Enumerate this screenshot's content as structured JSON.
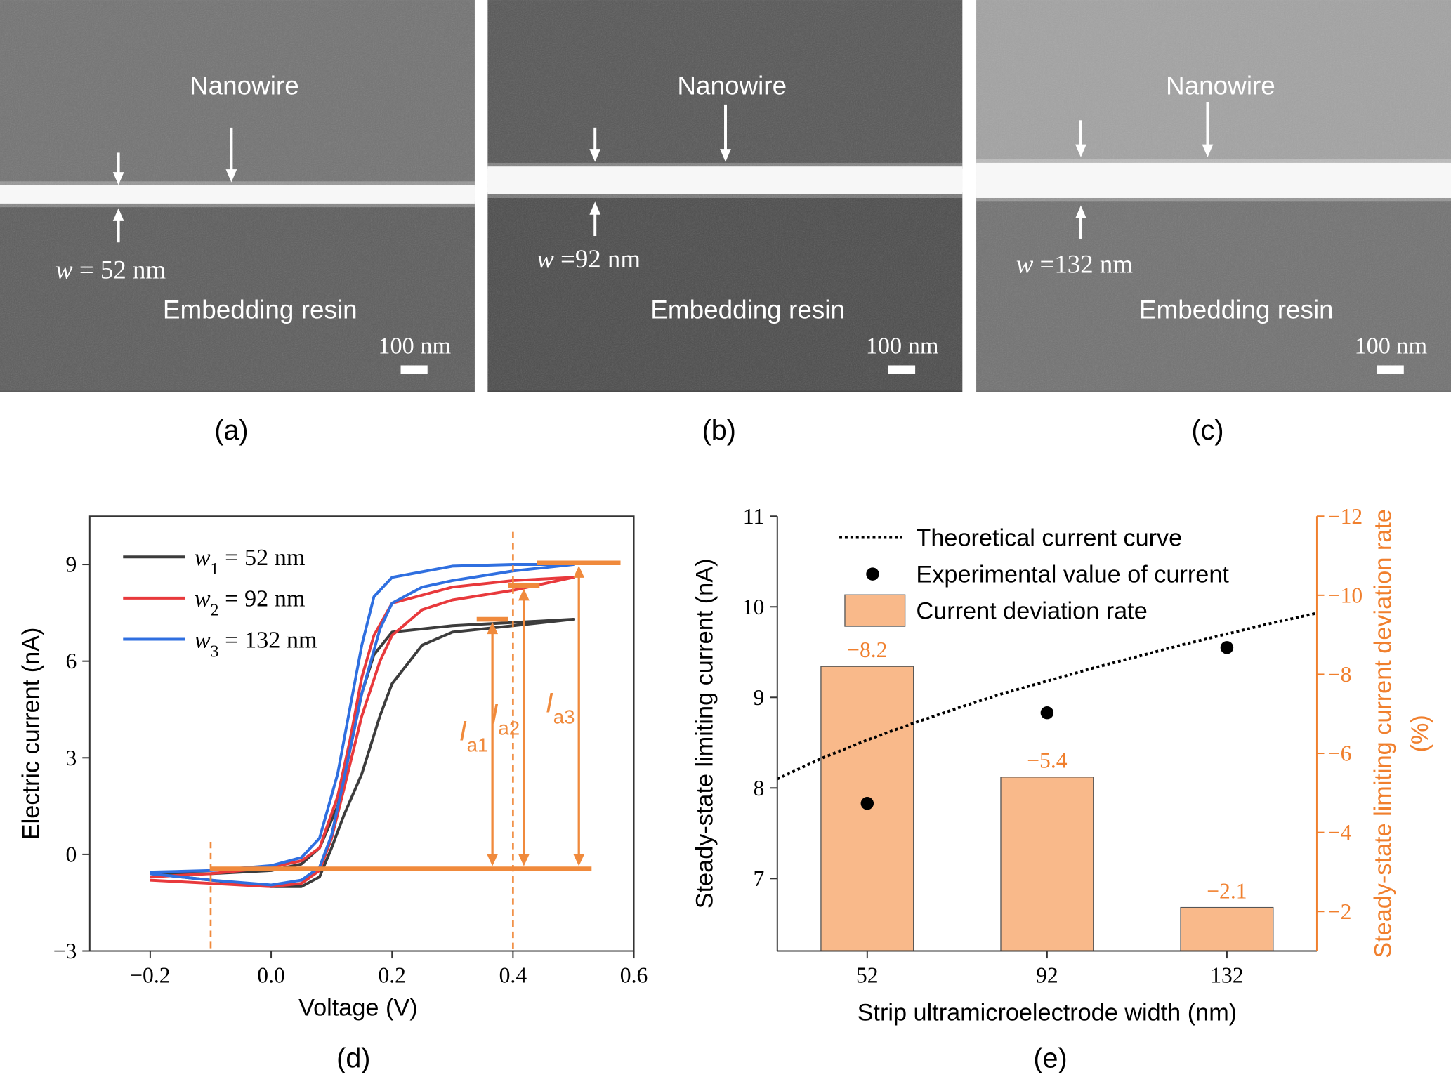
{
  "images": [
    {
      "panel_label": "(a)",
      "top_label": "Nanowire",
      "width_label": "w = 52 nm",
      "bottom_label": "Embedding resin",
      "scale_bar": "100 nm"
    },
    {
      "panel_label": "(b)",
      "top_label": "Nanowire",
      "width_label": "w =92 nm",
      "bottom_label": "Embedding resin",
      "scale_bar": "100 nm"
    },
    {
      "panel_label": "(c)",
      "top_label": "Nanowire",
      "width_label": "w =132 nm",
      "bottom_label": "Embedding resin",
      "scale_bar": "100 nm"
    }
  ],
  "chart_data": [
    {
      "type": "line",
      "panel_label": "(d)",
      "xlabel": "Voltage (V)",
      "ylabel": "Electric current (nA)",
      "xlim": [
        -0.3,
        0.6
      ],
      "xticks": [
        {
          "value": -0.2,
          "label": "−0.2"
        },
        {
          "value": 0,
          "label": "0.0"
        },
        0.2,
        0.4,
        0.6
      ],
      "ylim": [
        -3,
        10.5
      ],
      "yticks": [
        {
          "value": -3,
          "label": "−3"
        },
        0,
        3,
        6,
        9
      ],
      "series": [
        {
          "name": "w1 = 52 nm",
          "color": "#3c3c3c",
          "x": [
            -0.2,
            -0.1,
            0,
            0.05,
            0.08,
            0.1,
            0.12,
            0.15,
            0.18,
            0.2,
            0.25,
            0.3,
            0.4,
            0.5,
            0.4,
            0.3,
            0.2,
            0.17,
            0.15,
            0.13,
            0.11,
            0.08,
            0.05,
            0,
            -0.1,
            -0.2
          ],
          "values": [
            -0.6,
            -0.8,
            -1.0,
            -1.0,
            -0.7,
            0.2,
            1.2,
            2.5,
            4.3,
            5.3,
            6.5,
            6.9,
            7.1,
            7.3,
            7.2,
            7.1,
            6.9,
            6.2,
            5.0,
            3.2,
            1.5,
            0.2,
            -0.3,
            -0.5,
            -0.6,
            -0.6
          ]
        },
        {
          "name": "w2 = 92 nm",
          "color": "#e8393c",
          "x": [
            -0.2,
            -0.1,
            0,
            0.05,
            0.08,
            0.1,
            0.12,
            0.15,
            0.18,
            0.2,
            0.25,
            0.3,
            0.4,
            0.5,
            0.4,
            0.3,
            0.2,
            0.17,
            0.15,
            0.13,
            0.11,
            0.08,
            0.05,
            0,
            -0.1,
            -0.2
          ],
          "values": [
            -0.8,
            -0.9,
            -1.0,
            -0.9,
            -0.5,
            0.5,
            2.0,
            4.3,
            6.0,
            6.8,
            7.6,
            7.9,
            8.2,
            8.6,
            8.5,
            8.3,
            7.8,
            6.8,
            5.5,
            3.5,
            1.8,
            0.2,
            -0.2,
            -0.4,
            -0.6,
            -0.7
          ]
        },
        {
          "name": "w3 = 132 nm",
          "color": "#2f6fe0",
          "x": [
            -0.2,
            -0.1,
            0,
            0.05,
            0.08,
            0.1,
            0.12,
            0.15,
            0.18,
            0.2,
            0.25,
            0.3,
            0.4,
            0.5,
            0.4,
            0.3,
            0.2,
            0.17,
            0.15,
            0.13,
            0.11,
            0.08,
            0.05,
            0,
            -0.1,
            -0.2
          ],
          "values": [
            -0.6,
            -0.8,
            -0.95,
            -0.8,
            -0.4,
            0.6,
            2.3,
            5.0,
            7.0,
            7.8,
            8.3,
            8.5,
            8.8,
            9.0,
            9.0,
            8.95,
            8.6,
            8.0,
            6.5,
            4.5,
            2.5,
            0.5,
            -0.1,
            -0.35,
            -0.5,
            -0.55
          ]
        }
      ],
      "annotation_color": "#f08a3c",
      "baseline": {
        "value": -0.45,
        "x": [
          -0.1,
          0.53
        ]
      },
      "markers_x": [
        -0.1,
        0.4
      ],
      "annotations": [
        {
          "text": "Ia1",
          "x": 0.366,
          "value": 7.3
        },
        {
          "text": "Ia2",
          "x": 0.418,
          "value": 8.34
        },
        {
          "text": "Ia3",
          "x": 0.509,
          "value": 9.05
        }
      ]
    },
    {
      "type": "combo",
      "panel_label": "(e)",
      "xlabel": "Strip ultramicroelectrode width (nm)",
      "ylabel": "Steady-state limiting current (nA)",
      "y2label": [
        "Steady-state limiting current  deviation rate",
        "(%)"
      ],
      "y2_color": "#f07f2d",
      "xlim": [
        32,
        152
      ],
      "xticks": [
        52,
        92,
        132
      ],
      "ylim": [
        6.2,
        11
      ],
      "yticks": [
        7,
        8,
        9,
        10,
        11
      ],
      "y2lim": [
        -1,
        -12
      ],
      "y2ticks": [
        {
          "value": -2,
          "label": "−2"
        },
        {
          "value": -4,
          "label": "−4"
        },
        {
          "value": -6,
          "label": "−6"
        },
        {
          "value": -8,
          "label": "−8"
        },
        {
          "value": -10,
          "label": "−10"
        },
        {
          "value": -12,
          "label": "−12"
        }
      ],
      "series": [
        {
          "name": "Theoretical current curve",
          "type": "line",
          "color": "#000000",
          "x": [
            32,
            42,
            52,
            62,
            72,
            82,
            92,
            102,
            112,
            122,
            132,
            142,
            152
          ],
          "values": [
            8.1,
            8.33,
            8.53,
            8.71,
            8.88,
            9.04,
            9.18,
            9.32,
            9.45,
            9.58,
            9.7,
            9.82,
            9.93
          ]
        },
        {
          "name": "Experimental value of current",
          "type": "scatter",
          "color": "#000000",
          "x": [
            52,
            92,
            132
          ],
          "values": [
            7.83,
            8.83,
            9.55
          ]
        },
        {
          "name": "Current deviation rate",
          "type": "bar",
          "axis": "y2",
          "color": "#f9b98a",
          "x": [
            52,
            92,
            132
          ],
          "values": [
            -8.2,
            -5.4,
            -2.1
          ],
          "value_labels": [
            "−8.2",
            "−5.4",
            "−2.1"
          ]
        }
      ]
    }
  ]
}
